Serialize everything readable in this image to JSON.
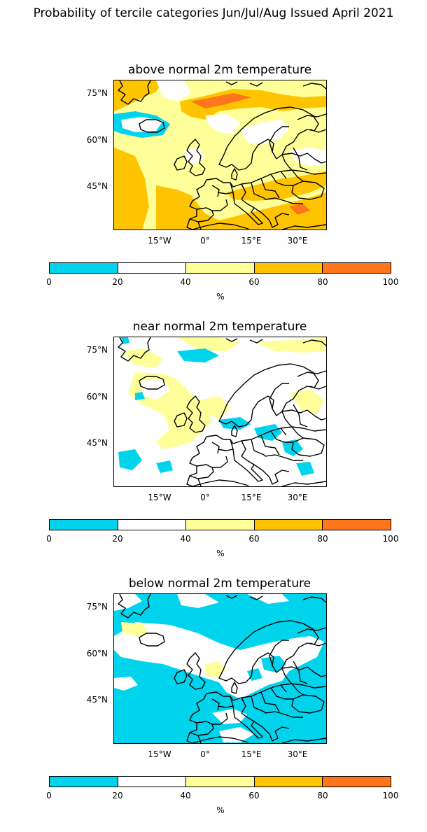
{
  "title": "Probability of tercile categories Jun/Jul/Aug Issued April 2021",
  "map_axes": {
    "lat_labels": [
      "75°N",
      "60°N",
      "45°N"
    ],
    "lon_labels": [
      "15°W",
      "0°",
      "15°E",
      "30°E"
    ]
  },
  "colorbar": {
    "ticks": [
      "0",
      "20",
      "40",
      "60",
      "80",
      "100"
    ],
    "unit": "%",
    "colors": [
      "#00d4ec",
      "#ffffff",
      "#ffff99",
      "#ffc400",
      "#ff7519"
    ]
  },
  "panels": [
    {
      "title": "above normal 2m temperature",
      "dominant_category": "40-60 / 60-80"
    },
    {
      "title": "near normal 2m temperature",
      "dominant_category": "20-40"
    },
    {
      "title": "below normal 2m temperature",
      "dominant_category": "0-20"
    }
  ],
  "land_color": "#000000"
}
